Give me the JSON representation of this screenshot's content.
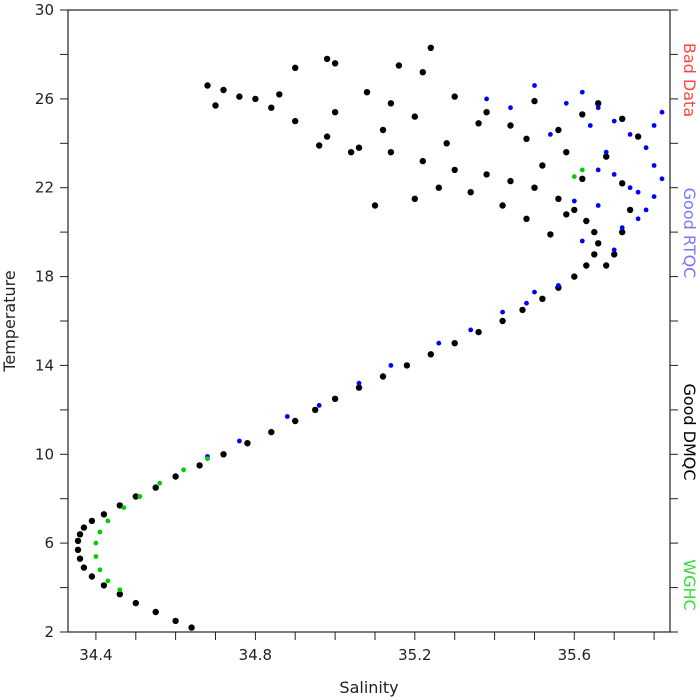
{
  "chart_data": {
    "type": "scatter",
    "title": "",
    "xlabel": "Salinity",
    "ylabel": "Temperature",
    "xlim": [
      34.33,
      35.84
    ],
    "ylim": [
      2,
      30
    ],
    "xticks": [
      "34.4",
      "34.8",
      "35.2",
      "35.6"
    ],
    "yticks": [
      "2",
      "6",
      "10",
      "14",
      "18",
      "22",
      "26",
      "30"
    ],
    "xtick_values": [
      34.4,
      34.8,
      35.2,
      35.6
    ],
    "ytick_values": [
      2,
      6,
      10,
      14,
      18,
      22,
      26,
      30
    ],
    "grid": false,
    "legend_position": "right (vertical text)",
    "series": [
      {
        "name": "Good DMQC",
        "color": "#000000",
        "points": [
          [
            34.64,
            2.2
          ],
          [
            34.6,
            2.5
          ],
          [
            34.55,
            2.9
          ],
          [
            34.5,
            3.3
          ],
          [
            34.46,
            3.7
          ],
          [
            34.42,
            4.1
          ],
          [
            34.39,
            4.5
          ],
          [
            34.37,
            4.9
          ],
          [
            34.36,
            5.3
          ],
          [
            34.355,
            5.7
          ],
          [
            34.355,
            6.1
          ],
          [
            34.36,
            6.4
          ],
          [
            34.37,
            6.7
          ],
          [
            34.39,
            7.0
          ],
          [
            34.42,
            7.3
          ],
          [
            34.46,
            7.7
          ],
          [
            34.5,
            8.1
          ],
          [
            34.55,
            8.5
          ],
          [
            34.6,
            9.0
          ],
          [
            34.66,
            9.5
          ],
          [
            34.72,
            10.0
          ],
          [
            34.78,
            10.5
          ],
          [
            34.84,
            11.0
          ],
          [
            34.9,
            11.5
          ],
          [
            34.95,
            12.0
          ],
          [
            35.0,
            12.5
          ],
          [
            35.06,
            13.0
          ],
          [
            35.12,
            13.5
          ],
          [
            35.18,
            14.0
          ],
          [
            35.24,
            14.5
          ],
          [
            35.3,
            15.0
          ],
          [
            35.36,
            15.5
          ],
          [
            35.42,
            16.0
          ],
          [
            35.47,
            16.5
          ],
          [
            35.52,
            17.0
          ],
          [
            35.56,
            17.5
          ],
          [
            35.6,
            18.0
          ],
          [
            35.63,
            18.5
          ],
          [
            35.65,
            19.0
          ],
          [
            35.66,
            19.5
          ],
          [
            35.65,
            20.0
          ],
          [
            35.63,
            20.5
          ],
          [
            35.6,
            21.0
          ],
          [
            35.56,
            21.5
          ],
          [
            35.5,
            22.0
          ],
          [
            35.44,
            22.3
          ],
          [
            35.38,
            22.6
          ],
          [
            35.3,
            22.8
          ],
          [
            35.22,
            23.2
          ],
          [
            35.14,
            23.6
          ],
          [
            35.06,
            23.8
          ],
          [
            34.98,
            24.3
          ],
          [
            34.9,
            25.0
          ],
          [
            34.84,
            25.6
          ],
          [
            34.76,
            26.1
          ],
          [
            34.72,
            26.4
          ],
          [
            34.68,
            26.6
          ],
          [
            34.7,
            25.7
          ],
          [
            34.8,
            26.0
          ],
          [
            34.86,
            26.2
          ],
          [
            34.9,
            27.4
          ],
          [
            34.98,
            27.8
          ],
          [
            35.0,
            27.6
          ],
          [
            35.08,
            26.3
          ],
          [
            35.14,
            25.8
          ],
          [
            35.2,
            25.2
          ],
          [
            35.22,
            27.2
          ],
          [
            35.24,
            28.3
          ],
          [
            35.16,
            27.5
          ],
          [
            35.3,
            26.1
          ],
          [
            35.38,
            25.4
          ],
          [
            35.44,
            24.8
          ],
          [
            35.5,
            25.9
          ],
          [
            35.56,
            24.6
          ],
          [
            35.62,
            25.3
          ],
          [
            35.66,
            25.8
          ],
          [
            35.72,
            25.1
          ],
          [
            35.76,
            24.3
          ],
          [
            35.68,
            23.4
          ],
          [
            35.72,
            22.2
          ],
          [
            35.74,
            21.0
          ],
          [
            35.72,
            20.0
          ],
          [
            35.7,
            19.0
          ],
          [
            35.68,
            18.5
          ],
          [
            35.2,
            21.5
          ],
          [
            35.1,
            21.2
          ],
          [
            35.26,
            22.0
          ],
          [
            35.34,
            21.8
          ],
          [
            35.42,
            21.2
          ],
          [
            35.48,
            20.6
          ],
          [
            35.54,
            19.9
          ],
          [
            35.58,
            20.8
          ],
          [
            35.62,
            22.4
          ],
          [
            35.58,
            23.6
          ],
          [
            35.48,
            24.2
          ],
          [
            35.36,
            24.9
          ],
          [
            35.28,
            24.0
          ],
          [
            35.04,
            23.6
          ],
          [
            34.96,
            23.9
          ],
          [
            35.0,
            25.4
          ],
          [
            35.12,
            24.6
          ],
          [
            35.52,
            23.0
          ]
        ]
      },
      {
        "name": "Good RTQC",
        "color": "#0000ff",
        "points": [
          [
            35.62,
            26.3
          ],
          [
            35.66,
            25.6
          ],
          [
            35.7,
            25.0
          ],
          [
            35.74,
            24.4
          ],
          [
            35.78,
            23.8
          ],
          [
            35.8,
            23.0
          ],
          [
            35.82,
            22.4
          ],
          [
            35.8,
            21.6
          ],
          [
            35.78,
            21.0
          ],
          [
            35.76,
            20.6
          ],
          [
            35.7,
            22.6
          ],
          [
            35.68,
            23.6
          ],
          [
            35.74,
            22.0
          ],
          [
            35.8,
            24.8
          ],
          [
            35.82,
            25.4
          ],
          [
            35.64,
            24.8
          ],
          [
            35.58,
            25.8
          ],
          [
            35.5,
            26.6
          ],
          [
            35.44,
            25.6
          ],
          [
            35.38,
            26.0
          ],
          [
            35.6,
            21.4
          ],
          [
            35.66,
            21.2
          ],
          [
            35.72,
            20.2
          ],
          [
            35.56,
            17.6
          ],
          [
            35.5,
            17.3
          ],
          [
            35.42,
            16.4
          ],
          [
            35.34,
            15.6
          ],
          [
            35.26,
            15.0
          ],
          [
            35.14,
            14.0
          ],
          [
            35.06,
            13.2
          ],
          [
            34.96,
            12.2
          ],
          [
            34.88,
            11.7
          ],
          [
            34.76,
            10.6
          ],
          [
            34.68,
            9.9
          ],
          [
            35.48,
            16.8
          ],
          [
            35.62,
            19.6
          ],
          [
            35.7,
            19.2
          ],
          [
            35.76,
            21.8
          ],
          [
            35.66,
            22.8
          ],
          [
            35.54,
            24.4
          ]
        ]
      },
      {
        "name": "WGHC",
        "color": "#00cc00",
        "points": [
          [
            34.46,
            3.9
          ],
          [
            34.43,
            4.3
          ],
          [
            34.41,
            4.8
          ],
          [
            34.4,
            5.4
          ],
          [
            34.4,
            6.0
          ],
          [
            34.41,
            6.5
          ],
          [
            34.43,
            7.0
          ],
          [
            34.47,
            7.6
          ],
          [
            34.51,
            8.1
          ],
          [
            34.56,
            8.7
          ],
          [
            34.62,
            9.3
          ],
          [
            34.68,
            9.8
          ],
          [
            35.62,
            22.8
          ],
          [
            35.6,
            22.5
          ]
        ]
      }
    ],
    "legend": [
      {
        "label": "Bad Data",
        "color": "#ff4444"
      },
      {
        "label": "Good RTQC",
        "color": "#7777ff"
      },
      {
        "label": "Good DMQC",
        "color": "#000000"
      },
      {
        "label": "WGHC",
        "color": "#33dd33"
      }
    ]
  }
}
